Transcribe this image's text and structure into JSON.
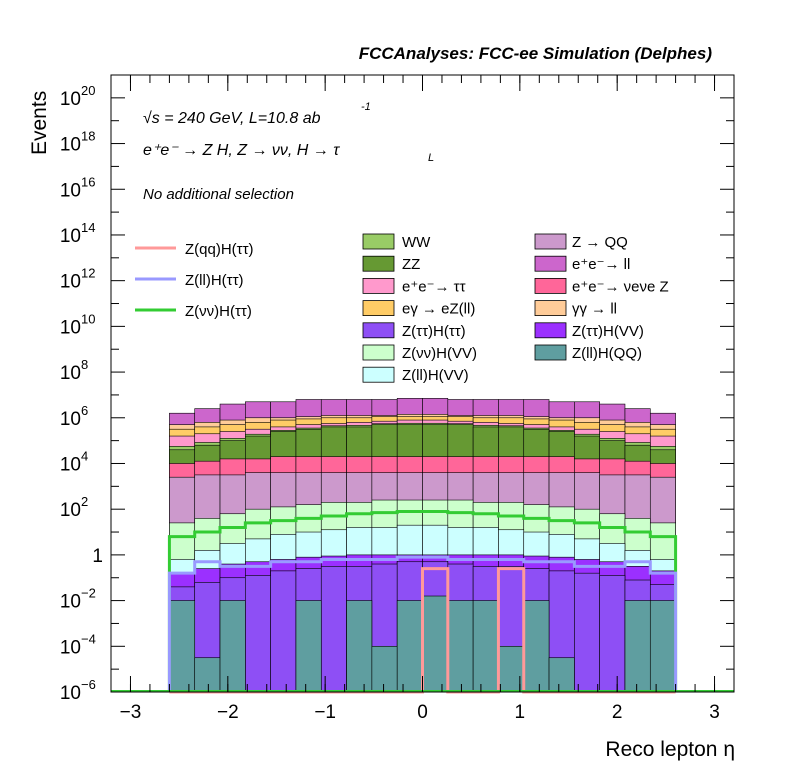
{
  "chart_data": {
    "type": "histogram-stack",
    "title": "FCCAnalyses: FCC-ee Simulation (Delphes)",
    "xlabel": "Reco lepton η",
    "ylabel": "Events",
    "xlim": [
      -3.2,
      3.2
    ],
    "ylim_exponent": [
      -6,
      21
    ],
    "y_scale": "log",
    "x_ticks": [
      {
        "value": -3,
        "label": "−3"
      },
      {
        "value": -2,
        "label": "−2"
      },
      {
        "value": -1,
        "label": "−1"
      },
      {
        "value": 0,
        "label": "0"
      },
      {
        "value": 1,
        "label": "1"
      },
      {
        "value": 2,
        "label": "2"
      },
      {
        "value": 3,
        "label": "3"
      }
    ],
    "y_ticks": [
      {
        "value": -6,
        "base": "10",
        "exp": "−6"
      },
      {
        "value": -4,
        "base": "10",
        "exp": "−4"
      },
      {
        "value": -2,
        "base": "10",
        "exp": "−2"
      },
      {
        "value": 0,
        "base": "1",
        "exp": ""
      },
      {
        "value": 2,
        "base": "10",
        "exp": "2"
      },
      {
        "value": 4,
        "base": "10",
        "exp": "4"
      },
      {
        "value": 6,
        "base": "10",
        "exp": "6"
      },
      {
        "value": 8,
        "base": "10",
        "exp": "8"
      },
      {
        "value": 10,
        "base": "10",
        "exp": "10"
      },
      {
        "value": 12,
        "base": "10",
        "exp": "12"
      },
      {
        "value": 14,
        "base": "10",
        "exp": "14"
      },
      {
        "value": 16,
        "base": "10",
        "exp": "16"
      },
      {
        "value": 18,
        "base": "10",
        "exp": "18"
      },
      {
        "value": 20,
        "base": "10",
        "exp": "20"
      }
    ],
    "annotations": {
      "energy": "√s = 240 GeV, L=10.8 ab",
      "energy_exp": "-1",
      "process": "e⁺e⁻ → Z H, Z → νν, H → τ",
      "process_sub": "L",
      "selection": "No additional selection"
    },
    "bin_edges": [
      -2.6,
      -2.34,
      -2.08,
      -1.82,
      -1.56,
      -1.3,
      -1.04,
      -0.78,
      -0.52,
      -0.26,
      0,
      0.26,
      0.52,
      0.78,
      1.04,
      1.3,
      1.56,
      1.82,
      2.08,
      2.34,
      2.6
    ],
    "stack_tops": [
      {
        "name": "Z(ll)H(QQ)",
        "color": "#5f9ea0",
        "log10": [
          -2,
          -4.5,
          -2,
          -6,
          -6,
          -2,
          -6,
          -2,
          -4,
          -2,
          -1.8,
          -2,
          -2,
          -4,
          -2,
          -4.5,
          -6,
          -6,
          -2,
          -2
        ]
      },
      {
        "name": "Z(ττ)H(ττ)",
        "color": "#8e4ff5",
        "log10": [
          -1.4,
          -1.2,
          -1.0,
          -0.9,
          -0.7,
          -0.6,
          -0.5,
          -0.5,
          -0.4,
          -0.3,
          -0.3,
          -0.4,
          -0.5,
          -0.5,
          -0.6,
          -0.7,
          -0.8,
          -0.9,
          -1.1,
          -1.3
        ]
      },
      {
        "name": "Z(ττ)H(VV)",
        "color": "#9b30ff",
        "log10": [
          -0.8,
          -0.6,
          -0.4,
          -0.3,
          -0.2,
          -0.1,
          -0.05,
          0,
          0,
          0,
          0,
          0,
          0,
          0,
          -0.05,
          -0.1,
          -0.2,
          -0.3,
          -0.5,
          -0.7
        ]
      },
      {
        "name": "Z(ll)H(VV)",
        "color": "#ccffff",
        "log10": [
          -0.2,
          0.2,
          0.5,
          0.7,
          0.9,
          1.0,
          1.1,
          1.2,
          1.2,
          1.3,
          1.3,
          1.2,
          1.2,
          1.1,
          1.0,
          0.9,
          0.7,
          0.5,
          0.2,
          -0.2
        ]
      },
      {
        "name": "Z(νν)H(VV)",
        "color": "#ccffcc",
        "log10": [
          1.4,
          1.6,
          1.8,
          2.0,
          2.1,
          2.2,
          2.3,
          2.3,
          2.4,
          2.4,
          2.4,
          2.4,
          2.3,
          2.3,
          2.2,
          2.1,
          2.0,
          1.8,
          1.6,
          1.4
        ]
      },
      {
        "name": "Z → QQ",
        "color": "#cc99cc",
        "log10": [
          3.4,
          3.5,
          3.5,
          3.6,
          3.6,
          3.6,
          3.6,
          3.6,
          3.6,
          3.6,
          3.6,
          3.6,
          3.6,
          3.6,
          3.6,
          3.6,
          3.6,
          3.5,
          3.5,
          3.4
        ]
      },
      {
        "name": "ee → νeνe Z",
        "color": "#ff6699",
        "log10": [
          4.0,
          4.1,
          4.2,
          4.2,
          4.3,
          4.3,
          4.3,
          4.3,
          4.3,
          4.3,
          4.3,
          4.3,
          4.3,
          4.3,
          4.3,
          4.3,
          4.2,
          4.2,
          4.1,
          4.0
        ]
      },
      {
        "name": "ZZ",
        "color": "#669933",
        "log10": [
          4.6,
          4.8,
          5.0,
          5.2,
          5.4,
          5.5,
          5.6,
          5.6,
          5.7,
          5.7,
          5.7,
          5.7,
          5.6,
          5.6,
          5.5,
          5.4,
          5.2,
          5.0,
          4.8,
          4.6
        ]
      },
      {
        "name": "WW",
        "color": "#99cc66",
        "log10": [
          4.75,
          4.92,
          5.1,
          5.28,
          5.45,
          5.55,
          5.65,
          5.67,
          5.74,
          5.76,
          5.76,
          5.74,
          5.67,
          5.65,
          5.55,
          5.45,
          5.28,
          5.1,
          4.92,
          4.75
        ]
      },
      {
        "name": "ee → ττ",
        "color": "#ff99cc",
        "log10": [
          5.2,
          5.3,
          5.4,
          5.5,
          5.6,
          5.7,
          5.75,
          5.8,
          5.85,
          5.9,
          5.9,
          5.85,
          5.8,
          5.75,
          5.7,
          5.6,
          5.5,
          5.4,
          5.3,
          5.2
        ]
      },
      {
        "name": "eγ → eZ(ll)",
        "color": "#ffcc66",
        "log10": [
          5.5,
          5.6,
          5.7,
          5.8,
          5.9,
          5.95,
          6.0,
          6.0,
          6.05,
          6.05,
          6.05,
          6.05,
          6.0,
          6.0,
          5.95,
          5.9,
          5.8,
          5.7,
          5.6,
          5.5
        ]
      },
      {
        "name": "γγ → ll",
        "color": "#ffcc99",
        "log10": [
          5.7,
          5.8,
          5.9,
          6.0,
          6.0,
          6.05,
          6.1,
          6.1,
          6.1,
          6.15,
          6.15,
          6.1,
          6.1,
          6.1,
          6.05,
          6.0,
          6.0,
          5.9,
          5.8,
          5.7
        ]
      },
      {
        "name": "ee → ll",
        "color": "#cc66cc",
        "log10": [
          6.2,
          6.4,
          6.6,
          6.7,
          6.7,
          6.8,
          6.8,
          6.8,
          6.8,
          6.85,
          6.85,
          6.8,
          6.8,
          6.8,
          6.8,
          6.7,
          6.7,
          6.6,
          6.4,
          6.2
        ]
      }
    ],
    "signal_lines": [
      {
        "name": "Z(νν)H(ττ)",
        "color": "#33cc33",
        "log10": [
          0.8,
          1.0,
          1.2,
          1.4,
          1.5,
          1.6,
          1.7,
          1.8,
          1.85,
          1.9,
          1.9,
          1.85,
          1.8,
          1.7,
          1.6,
          1.5,
          1.4,
          1.2,
          1.0,
          0.8
        ]
      },
      {
        "name": "Z(ll)H(ττ)",
        "color": "#9999ff",
        "log10": [
          -0.8,
          -0.3,
          -0.5,
          -0.5,
          -0.3,
          -0.3,
          -0.2,
          -0.2,
          -0.2,
          -0.1,
          -0.1,
          -0.2,
          -0.2,
          -0.2,
          -0.3,
          -0.3,
          -0.5,
          -0.5,
          -0.3,
          -0.8
        ]
      },
      {
        "name": "Z(qq)H(ττ)",
        "color": "#ff9999",
        "log10": [
          -7,
          -7,
          -7,
          -7,
          -7,
          -7,
          -7,
          -7,
          -7,
          -7,
          -0.6,
          -7,
          -7,
          -0.6,
          -7,
          -7,
          -7,
          -7,
          -7,
          -7
        ]
      }
    ],
    "legend_lines": [
      {
        "label": "Z(qq)H(ττ)",
        "color": "#ff9999"
      },
      {
        "label": "Z(ll)H(ττ)",
        "color": "#9999ff"
      },
      {
        "label": "Z(νν)H(ττ)",
        "color": "#33cc33"
      }
    ],
    "legend_boxes_col1": [
      {
        "label": "WW",
        "color": "#99cc66"
      },
      {
        "label": "ZZ",
        "color": "#669933"
      },
      {
        "label": "e⁺e⁻→ ττ",
        "color": "#ff99cc"
      },
      {
        "label": "eγ → eZ(ll)",
        "color": "#ffcc66"
      },
      {
        "label": "Z(ττ)H(ττ)",
        "color": "#8e4ff5"
      },
      {
        "label": "Z(νν)H(VV)",
        "color": "#ccffcc"
      },
      {
        "label": "Z(ll)H(VV)",
        "color": "#ccffff"
      }
    ],
    "legend_boxes_col2": [
      {
        "label": "Z → QQ",
        "color": "#cc99cc"
      },
      {
        "label": "e⁺e⁻→ ll",
        "color": "#cc66cc"
      },
      {
        "label": "e⁺e⁻→ νeνe Z",
        "color": "#ff6699"
      },
      {
        "label": "γγ → ll",
        "color": "#ffcc99"
      },
      {
        "label": "Z(ττ)H(VV)",
        "color": "#9b30ff"
      },
      {
        "label": "Z(ll)H(QQ)",
        "color": "#5f9ea0"
      }
    ]
  }
}
